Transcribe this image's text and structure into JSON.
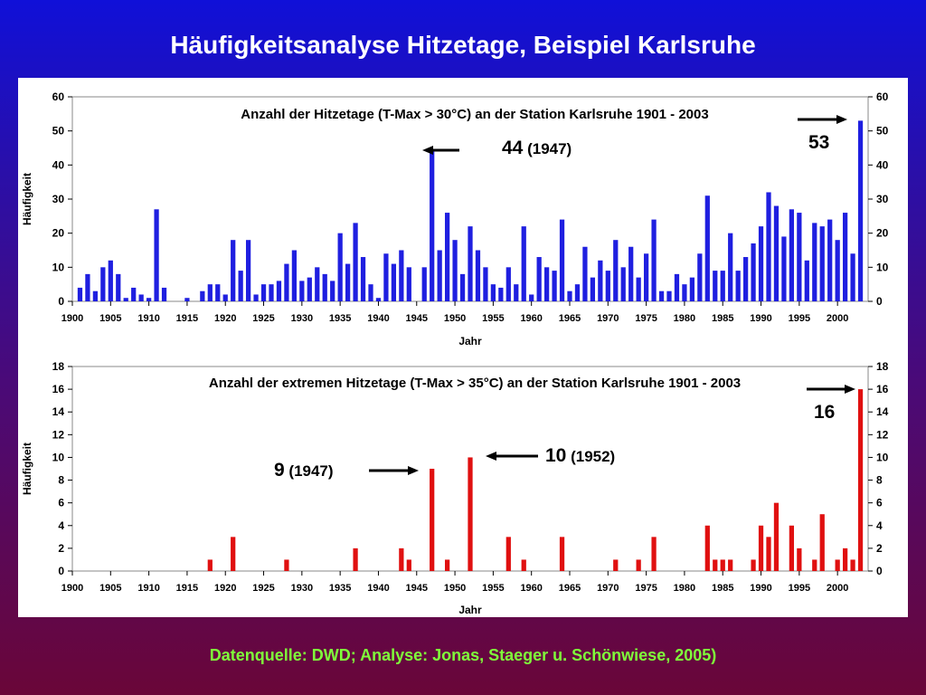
{
  "slide": {
    "title": "Häufigkeitsanalyse Hitzetage, Beispiel Karlsruhe",
    "footer": "Datenquelle: DWD; Analyse: Jonas, Staeger u. Schönwiese, 2005)"
  },
  "colors": {
    "top_bars": "#1f1fe0",
    "bottom_bars": "#e01010",
    "background_top": "#1010d8",
    "background_bottom": "#6a0638",
    "footer_text": "#7fff3a"
  },
  "chart_data": [
    {
      "type": "bar",
      "title": "Anzahl der Hitzetage (T-Max > 30°C) an der Station Karlsruhe 1901 - 2003",
      "xlabel": "Jahr",
      "ylabel": "Häufigkeit",
      "ylim": [
        0,
        60
      ],
      "yticks": [
        0,
        10,
        20,
        30,
        40,
        50,
        60
      ],
      "xticks": [
        1900,
        1905,
        1910,
        1915,
        1920,
        1925,
        1930,
        1935,
        1940,
        1945,
        1950,
        1955,
        1960,
        1965,
        1970,
        1975,
        1980,
        1985,
        1990,
        1995,
        2000
      ],
      "xlim": [
        1900,
        2004
      ],
      "color": "#1f1fe0",
      "series": [
        {
          "x": [
            1901,
            1902,
            1903,
            1904,
            1905,
            1906,
            1907,
            1908,
            1909,
            1910,
            1911,
            1912,
            1915,
            1917,
            1918,
            1919,
            1920,
            1921,
            1922,
            1923,
            1924,
            1925,
            1926,
            1927,
            1928,
            1929,
            1930,
            1931,
            1932,
            1933,
            1934,
            1935,
            1936,
            1937,
            1938,
            1939,
            1940,
            1941,
            1942,
            1943,
            1944,
            1946,
            1947,
            1948,
            1949,
            1950,
            1951,
            1952,
            1953,
            1954,
            1955,
            1956,
            1957,
            1958,
            1959,
            1960,
            1961,
            1962,
            1963,
            1964,
            1965,
            1966,
            1967,
            1968,
            1969,
            1970,
            1971,
            1972,
            1973,
            1974,
            1975,
            1976,
            1977,
            1978,
            1979,
            1980,
            1981,
            1982,
            1983,
            1984,
            1985,
            1986,
            1987,
            1988,
            1989,
            1990,
            1991,
            1992,
            1993,
            1994,
            1995,
            1996,
            1997,
            1998,
            1999,
            2000,
            2001,
            2002,
            2003
          ],
          "values": [
            4,
            8,
            3,
            10,
            12,
            8,
            1,
            4,
            2,
            1,
            27,
            4,
            1,
            3,
            5,
            5,
            2,
            18,
            9,
            18,
            2,
            5,
            5,
            6,
            11,
            15,
            6,
            7,
            10,
            8,
            6,
            20,
            11,
            23,
            13,
            5,
            1,
            14,
            11,
            15,
            10,
            10,
            44,
            15,
            26,
            18,
            8,
            22,
            15,
            10,
            5,
            4,
            10,
            5,
            22,
            2,
            13,
            10,
            9,
            24,
            3,
            5,
            16,
            7,
            12,
            9,
            18,
            10,
            16,
            7,
            14,
            24,
            3,
            3,
            8,
            5,
            7,
            14,
            31,
            9,
            9,
            20,
            9,
            13,
            17,
            22,
            32,
            28,
            19,
            27,
            26,
            12,
            23,
            22,
            24,
            18,
            26,
            14,
            53
          ]
        }
      ],
      "annotations": [
        {
          "label_value": "44",
          "label_year": "(1947)",
          "points_to_year": 1947
        },
        {
          "label_value": "53",
          "label_year": "",
          "points_to_year": 2003
        }
      ]
    },
    {
      "type": "bar",
      "title": "Anzahl der extremen Hitzetage (T-Max > 35°C) an der Station Karlsruhe 1901 - 2003",
      "xlabel": "Jahr",
      "ylabel": "Häufigkeit",
      "ylim": [
        0,
        18
      ],
      "yticks": [
        0,
        2,
        4,
        6,
        8,
        10,
        12,
        14,
        16,
        18
      ],
      "xticks": [
        1900,
        1905,
        1910,
        1915,
        1920,
        1925,
        1930,
        1935,
        1940,
        1945,
        1950,
        1955,
        1960,
        1965,
        1970,
        1975,
        1980,
        1985,
        1990,
        1995,
        2000
      ],
      "xlim": [
        1900,
        2004
      ],
      "color": "#e01010",
      "series": [
        {
          "x": [
            1918,
            1921,
            1928,
            1937,
            1943,
            1944,
            1947,
            1949,
            1952,
            1957,
            1959,
            1964,
            1971,
            1974,
            1976,
            1983,
            1984,
            1985,
            1986,
            1989,
            1990,
            1991,
            1992,
            1994,
            1995,
            1997,
            1998,
            2000,
            2001,
            2002,
            2003
          ],
          "values": [
            1,
            3,
            1,
            2,
            2,
            1,
            9,
            1,
            10,
            3,
            1,
            3,
            1,
            1,
            3,
            4,
            1,
            1,
            1,
            1,
            4,
            3,
            6,
            4,
            2,
            1,
            5,
            1,
            2,
            1,
            16
          ]
        }
      ],
      "annotations": [
        {
          "label_value": "9",
          "label_year": "(1947)",
          "points_to_year": 1947
        },
        {
          "label_value": "10",
          "label_year": "(1952)",
          "points_to_year": 1952
        },
        {
          "label_value": "16",
          "label_year": "",
          "points_to_year": 2003
        }
      ]
    }
  ]
}
